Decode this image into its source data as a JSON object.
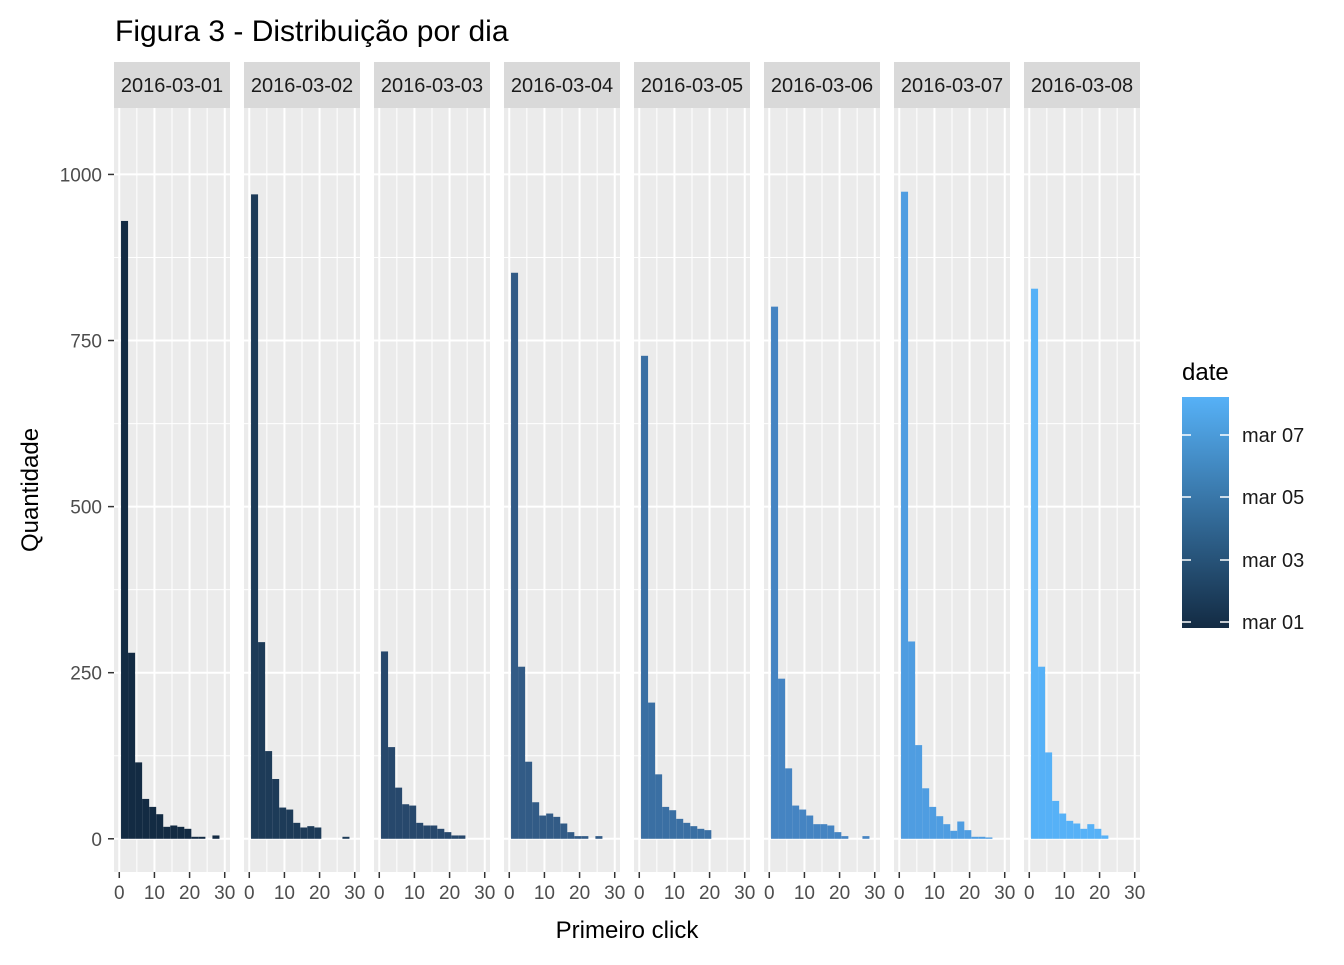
{
  "chart_data": {
    "type": "bar",
    "chart_kind": "faceted histogram",
    "title": "Figura 3 - Distribuição por dia",
    "xlabel": "Primeiro click",
    "ylabel": "Quantidade",
    "xlim": [
      0,
      30
    ],
    "ylim": [
      0,
      1000
    ],
    "x_ticks": [
      "0",
      "10",
      "20",
      "30"
    ],
    "y_ticks": [
      "0",
      "250",
      "500",
      "750",
      "1000"
    ],
    "bin_width": 2,
    "bins_x_start": [
      1,
      3,
      5,
      7,
      9,
      11,
      13,
      15,
      17,
      19,
      21,
      23,
      25,
      27,
      29
    ],
    "grid": true,
    "legend": {
      "title": "date",
      "position": "right",
      "type": "colorbar",
      "labels": [
        "mar 07",
        "mar 05",
        "mar 03",
        "mar 01"
      ],
      "color_low": "#132B43",
      "color_high": "#56B1F7"
    },
    "facets": [
      {
        "label": "2016-03-01",
        "color": "#132B43",
        "values": [
          930,
          280,
          115,
          60,
          48,
          37,
          18,
          20,
          18,
          15,
          3,
          3,
          0,
          5,
          0
        ]
      },
      {
        "label": "2016-03-02",
        "color": "#1D3B58",
        "values": [
          970,
          296,
          132,
          90,
          47,
          44,
          24,
          17,
          19,
          17,
          0,
          0,
          0,
          3,
          0
        ]
      },
      {
        "label": "2016-03-03",
        "color": "#27486C",
        "values": [
          282,
          138,
          77,
          52,
          50,
          24,
          20,
          20,
          15,
          10,
          5,
          5,
          0,
          0,
          0
        ]
      },
      {
        "label": "2016-03-04",
        "color": "#325B86",
        "values": [
          852,
          259,
          116,
          55,
          35,
          38,
          33,
          23,
          10,
          4,
          4,
          0,
          4,
          0,
          0
        ]
      },
      {
        "label": "2016-03-05",
        "color": "#3A6FA3",
        "values": [
          727,
          205,
          97,
          48,
          43,
          30,
          24,
          19,
          15,
          13,
          0,
          0,
          0,
          0,
          0
        ]
      },
      {
        "label": "2016-03-06",
        "color": "#4584C2",
        "values": [
          801,
          241,
          106,
          50,
          44,
          35,
          22,
          22,
          20,
          10,
          4,
          0,
          0,
          4,
          0
        ]
      },
      {
        "label": "2016-03-07",
        "color": "#4F9DE1",
        "values": [
          974,
          297,
          141,
          76,
          48,
          34,
          22,
          12,
          26,
          13,
          3,
          3,
          2,
          0,
          0
        ]
      },
      {
        "label": "2016-03-08",
        "color": "#56B1F7",
        "values": [
          828,
          259,
          130,
          57,
          38,
          27,
          23,
          15,
          22,
          15,
          5,
          0,
          0,
          0,
          0
        ]
      }
    ]
  }
}
